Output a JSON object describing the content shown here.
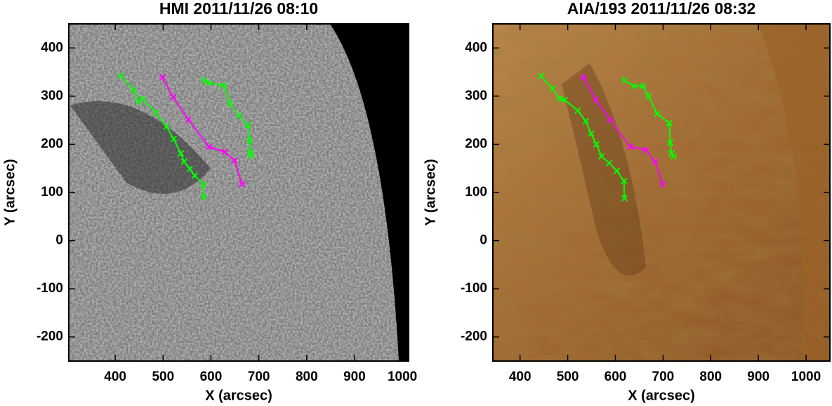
{
  "chart_data": [
    {
      "type": "line",
      "title": "HMI 2011/11/26 08:10",
      "x_label": "X (arcsec)",
      "y_label": "Y (arcsec)",
      "xlim": [
        303,
        1013
      ],
      "ylim": [
        -250,
        450
      ],
      "xticks": [
        400,
        500,
        600,
        700,
        800,
        900,
        1000
      ],
      "yticks": [
        -200,
        -100,
        0,
        100,
        200,
        300,
        400
      ],
      "series": [
        {
          "color": "#00ff00",
          "x": [
            412,
            438,
            449,
            457,
            485,
            507,
            522,
            537,
            544,
            556,
            566,
            584,
            585
          ],
          "values": [
            342,
            313,
            288,
            295,
            266,
            237,
            211,
            181,
            164,
            149,
            135,
            117,
            91
          ]
        },
        {
          "color": "#ff00ff",
          "x": [
            499,
            521,
            553,
            596,
            629,
            649,
            665
          ],
          "values": [
            339,
            298,
            251,
            195,
            184,
            167,
            117
          ]
        },
        {
          "color": "#00ff00",
          "x": [
            585,
            596,
            627,
            640,
            659,
            677,
            681,
            682,
            684
          ],
          "values": [
            333,
            327,
            322,
            285,
            259,
            240,
            208,
            183,
            176
          ]
        }
      ]
    },
    {
      "type": "line",
      "title": "AIA/193 2011/11/26 08:32",
      "x_label": "X (arcsec)",
      "y_label": "Y (arcsec)",
      "xlim": [
        343,
        1050
      ],
      "ylim": [
        -250,
        450
      ],
      "xticks": [
        400,
        500,
        600,
        700,
        800,
        900,
        1000
      ],
      "yticks": [
        -200,
        -100,
        0,
        100,
        200,
        300,
        400
      ],
      "series": [
        {
          "color": "#00ff00",
          "x": [
            444,
            468,
            483,
            494,
            521,
            538,
            549,
            560,
            571,
            587,
            603,
            618,
            619
          ],
          "values": [
            342,
            316,
            295,
            292,
            270,
            248,
            222,
            200,
            175,
            161,
            145,
            124,
            88
          ]
        },
        {
          "color": "#ff00ff",
          "x": [
            533,
            559,
            589,
            631,
            664,
            683,
            699
          ],
          "values": [
            339,
            292,
            251,
            195,
            188,
            164,
            117
          ]
        },
        {
          "color": "#00ff00",
          "x": [
            619,
            639,
            658,
            669,
            688,
            713,
            715,
            718,
            722
          ],
          "values": [
            333,
            321,
            321,
            300,
            263,
            244,
            203,
            181,
            175
          ]
        }
      ]
    }
  ]
}
